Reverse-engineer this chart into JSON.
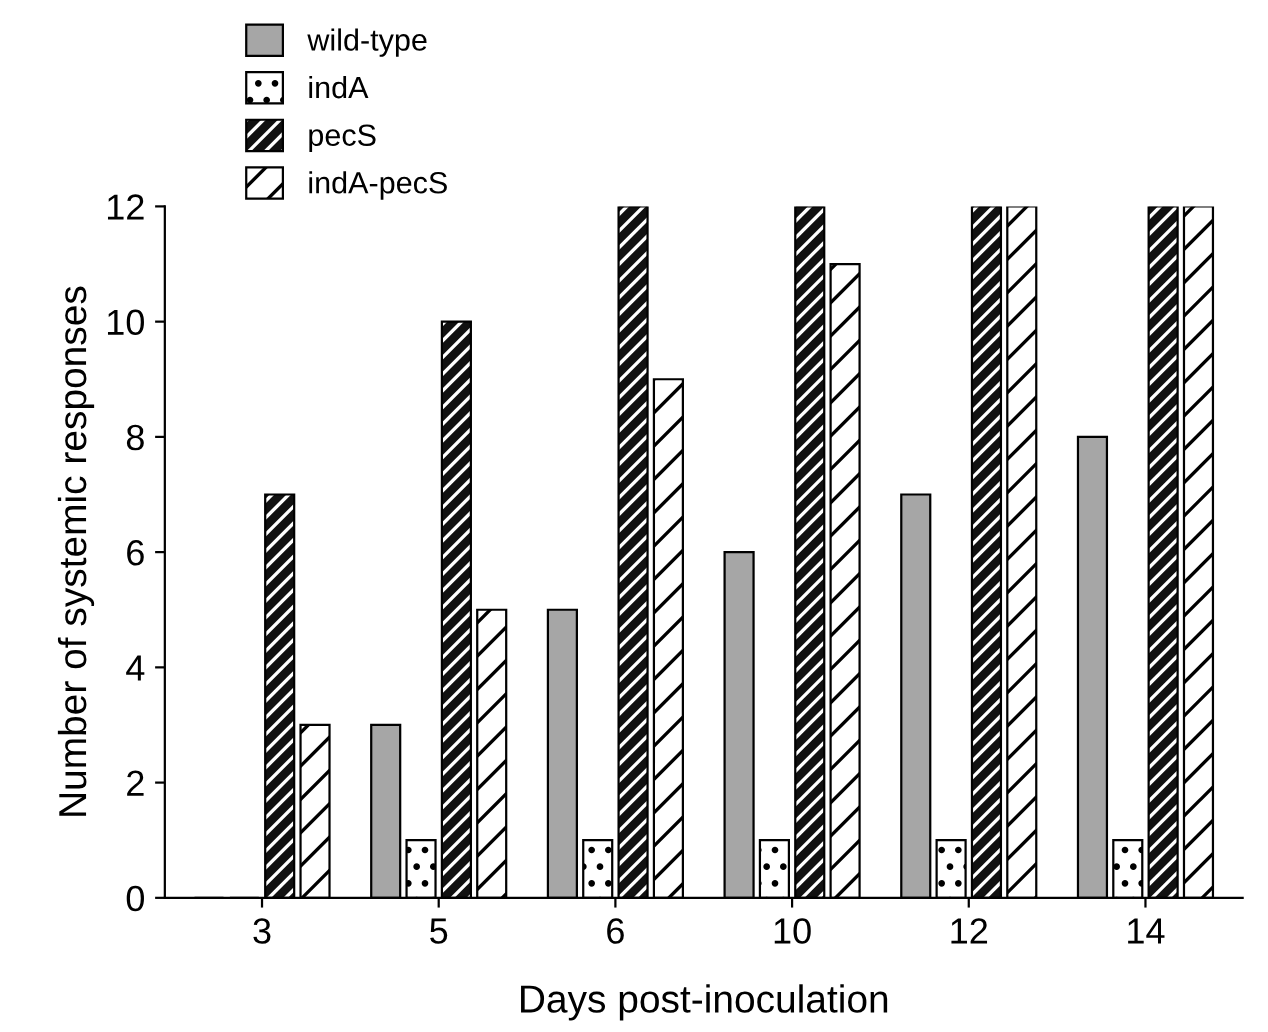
{
  "chart_data": {
    "type": "bar",
    "xlabel": "Days post-inoculation",
    "ylabel": "Number of systemic responses",
    "categories": [
      "3",
      "5",
      "6",
      "10",
      "12",
      "14"
    ],
    "series": [
      {
        "name": "wild-type",
        "color": "#a6a6a6",
        "values": [
          0,
          3,
          5,
          6,
          7,
          8
        ]
      },
      {
        "name": "indA",
        "color": "#ffffff",
        "values": [
          0,
          1,
          1,
          1,
          1,
          1
        ]
      },
      {
        "name": "pecS",
        "color": "#111111",
        "values": [
          7,
          10,
          12,
          12,
          12,
          12
        ]
      },
      {
        "name": "indA-pecS",
        "color": "#ffffff",
        "values": [
          3,
          5,
          9,
          11,
          12,
          12
        ]
      }
    ],
    "ylim": [
      0,
      12
    ],
    "yticks": [
      0,
      2,
      4,
      6,
      8,
      10,
      12
    ],
    "grid": false,
    "legend": "top left"
  }
}
